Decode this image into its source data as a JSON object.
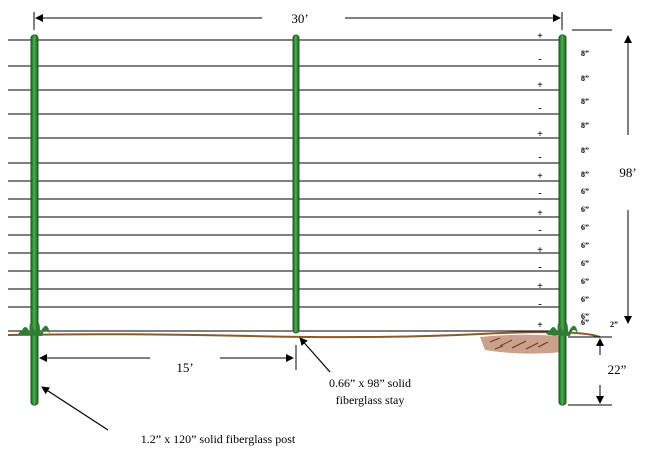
{
  "dimensions": {
    "total_width": "30’",
    "half_width": "15’",
    "height_above_ground": "98’",
    "depth_below_ground": "22”",
    "ground_gap": "2”"
  },
  "wire_spacings": [
    "8”",
    "8”",
    "8”",
    "8”",
    "8”",
    "8”",
    "6”",
    "6”",
    "6”",
    "6”",
    "6”",
    "6”",
    "6”",
    "6”",
    "6”"
  ],
  "wire_polarity": [
    "+",
    "-",
    "+",
    "-",
    "+",
    "-",
    "+",
    "-",
    "+",
    "-",
    "+",
    "-",
    "+",
    "-",
    "+"
  ],
  "labels": {
    "post": "1.2” x 120” solid fiberglass post",
    "stay_line1": "0.66” x 98” solid",
    "stay_line2": "fiberglass stay"
  },
  "colors": {
    "post": "#2e7d32",
    "post_light": "#4caf50",
    "ground": "#8b5a2b",
    "wire": "#000000"
  }
}
